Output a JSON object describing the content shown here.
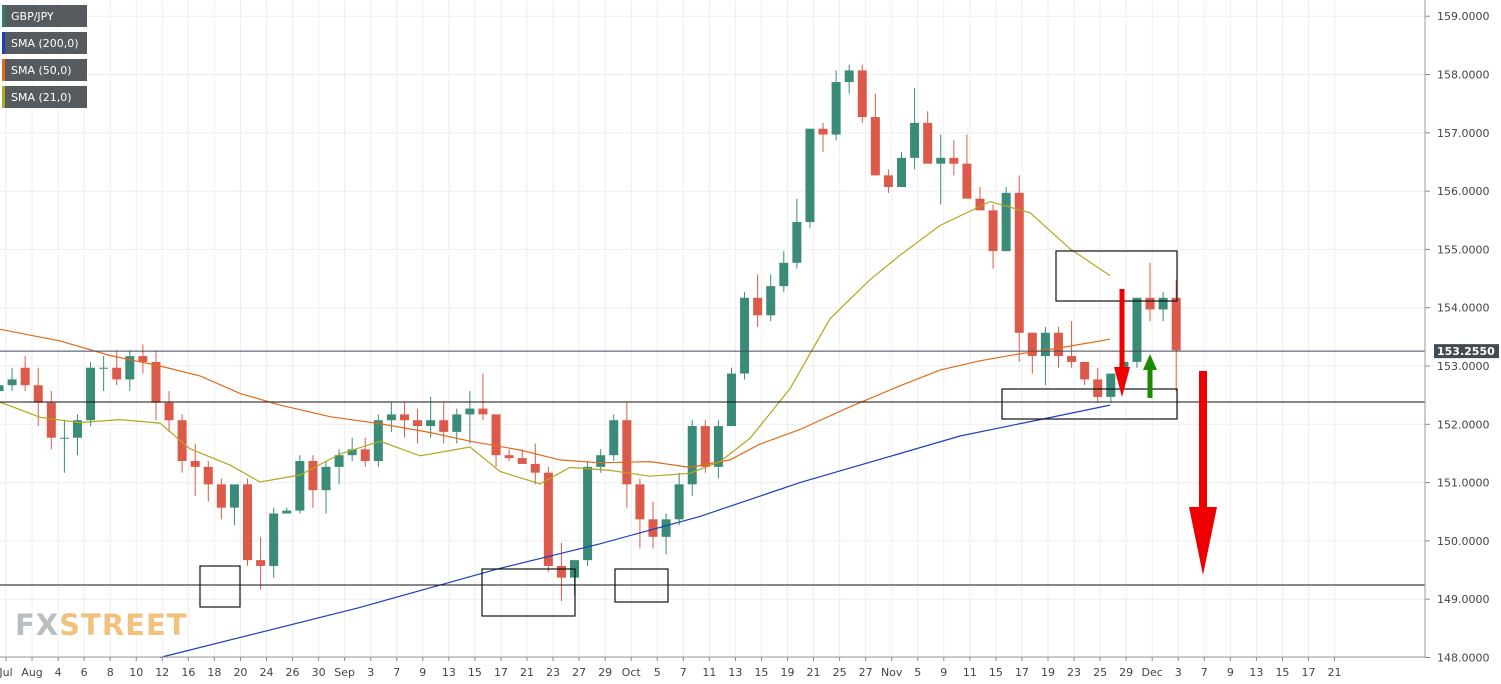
{
  "legend": [
    {
      "label": "GBP/JPY",
      "color": "#2d8070"
    },
    {
      "label": "SMA (200,0)",
      "color": "#1d3fbf"
    },
    {
      "label": "SMA (50,0)",
      "color": "#e06a1c"
    },
    {
      "label": "SMA (21,0)",
      "color": "#b3a71c"
    }
  ],
  "logo": {
    "fx": "FX",
    "street": "STREET"
  },
  "colors": {
    "up": "#3a8b78",
    "down": "#dc5a4a",
    "sma200": "#1d3fbf",
    "sma50": "#e06a1c",
    "sma21": "#b3a71c",
    "arrow_down": "#ee0000",
    "arrow_up": "#1a8a00",
    "price_label_bg": "#434a50"
  },
  "chart_data": {
    "type": "candlestick",
    "symbol": "GBP/JPY",
    "current_price": "153.2550",
    "current_price_value": 153.255,
    "ylim": [
      148.0,
      159.0
    ],
    "y_ticks": [
      "148.0000",
      "149.0000",
      "150.0000",
      "151.0000",
      "152.0000",
      "153.0000",
      "154.0000",
      "155.0000",
      "156.0000",
      "157.0000",
      "158.0000",
      "159.0000"
    ],
    "x_tick_labels": [
      "Jul",
      "Aug",
      "4",
      "6",
      "8",
      "10",
      "12",
      "16",
      "18",
      "20",
      "24",
      "26",
      "30",
      "Sep",
      "3",
      "7",
      "9",
      "13",
      "15",
      "17",
      "21",
      "23",
      "27",
      "29",
      "Oct",
      "5",
      "7",
      "11",
      "13",
      "15",
      "19",
      "21",
      "25",
      "27",
      "Nov",
      "5",
      "9",
      "11",
      "15",
      "17",
      "19",
      "23",
      "25",
      "29",
      "Dec",
      "3",
      "7",
      "9",
      "13",
      "15",
      "17",
      "21"
    ],
    "candles": [
      [
        152.57,
        152.97,
        152.37,
        152.67
      ],
      [
        152.67,
        152.97,
        152.57,
        152.77
      ],
      [
        152.97,
        153.17,
        152.57,
        152.67
      ],
      [
        152.67,
        152.97,
        151.97,
        152.37
      ],
      [
        152.37,
        152.57,
        151.57,
        151.77
      ],
      [
        151.77,
        152.07,
        151.17,
        151.77
      ],
      [
        151.77,
        152.17,
        151.47,
        152.07
      ],
      [
        152.07,
        153.07,
        151.97,
        152.97
      ],
      [
        152.97,
        153.17,
        152.57,
        152.97
      ],
      [
        152.97,
        153.27,
        152.67,
        152.77
      ],
      [
        152.77,
        153.27,
        152.57,
        153.17
      ],
      [
        153.17,
        153.37,
        152.87,
        153.07
      ],
      [
        153.07,
        153.27,
        152.07,
        152.37
      ],
      [
        152.37,
        152.57,
        151.87,
        152.07
      ],
      [
        152.07,
        152.17,
        151.17,
        151.37
      ],
      [
        151.37,
        151.67,
        150.77,
        151.27
      ],
      [
        151.27,
        151.37,
        150.67,
        150.97
      ],
      [
        150.97,
        151.07,
        150.37,
        150.57
      ],
      [
        150.57,
        150.97,
        150.27,
        150.97
      ],
      [
        150.97,
        151.07,
        149.57,
        149.67
      ],
      [
        149.67,
        150.07,
        149.17,
        149.57
      ],
      [
        149.57,
        150.57,
        149.37,
        150.47
      ],
      [
        150.47,
        150.57,
        150.47,
        150.52
      ],
      [
        150.52,
        151.47,
        150.47,
        151.37
      ],
      [
        151.37,
        151.47,
        150.57,
        150.87
      ],
      [
        150.87,
        151.37,
        150.47,
        151.27
      ],
      [
        151.27,
        151.57,
        150.97,
        151.47
      ],
      [
        151.47,
        151.77,
        151.37,
        151.57
      ],
      [
        151.57,
        151.77,
        151.27,
        151.37
      ],
      [
        151.37,
        152.17,
        151.27,
        152.07
      ],
      [
        152.07,
        152.37,
        151.87,
        152.17
      ],
      [
        152.17,
        152.37,
        151.77,
        152.07
      ],
      [
        152.07,
        152.27,
        151.67,
        151.97
      ],
      [
        151.97,
        152.47,
        151.77,
        152.07
      ],
      [
        152.07,
        152.37,
        151.67,
        151.87
      ],
      [
        151.87,
        152.27,
        151.67,
        152.17
      ],
      [
        152.17,
        152.57,
        151.67,
        152.27
      ],
      [
        152.27,
        152.87,
        152.07,
        152.17
      ],
      [
        152.17,
        152.17,
        151.27,
        151.47
      ],
      [
        151.47,
        151.57,
        151.37,
        151.42
      ],
      [
        151.42,
        151.57,
        151.37,
        151.32
      ],
      [
        151.32,
        151.67,
        150.97,
        151.17
      ],
      [
        151.17,
        151.27,
        149.47,
        149.57
      ],
      [
        149.57,
        149.97,
        148.97,
        149.37
      ],
      [
        149.37,
        149.67,
        149.07,
        149.67
      ],
      [
        149.67,
        151.37,
        149.57,
        151.27
      ],
      [
        151.27,
        151.57,
        151.17,
        151.47
      ],
      [
        151.47,
        152.17,
        151.37,
        152.07
      ],
      [
        152.07,
        152.37,
        150.57,
        150.97
      ],
      [
        150.97,
        151.07,
        149.87,
        150.37
      ],
      [
        150.37,
        150.67,
        149.87,
        150.07
      ],
      [
        150.07,
        150.47,
        149.77,
        150.37
      ],
      [
        150.37,
        151.17,
        150.27,
        150.97
      ],
      [
        150.97,
        152.07,
        150.77,
        151.97
      ],
      [
        151.97,
        152.07,
        151.17,
        151.27
      ],
      [
        151.27,
        152.07,
        151.07,
        151.97
      ],
      [
        151.97,
        152.97,
        151.97,
        152.87
      ],
      [
        152.87,
        154.27,
        152.77,
        154.17
      ],
      [
        154.17,
        154.57,
        153.67,
        153.87
      ],
      [
        153.87,
        154.57,
        153.77,
        154.37
      ],
      [
        154.37,
        154.97,
        154.27,
        154.77
      ],
      [
        154.77,
        155.87,
        154.67,
        155.47
      ],
      [
        155.47,
        157.07,
        155.37,
        157.07
      ],
      [
        157.07,
        157.17,
        156.67,
        156.97
      ],
      [
        156.97,
        158.07,
        156.87,
        157.87
      ],
      [
        157.87,
        158.17,
        157.67,
        158.07
      ],
      [
        158.07,
        158.17,
        157.17,
        157.27
      ],
      [
        157.27,
        157.67,
        156.27,
        156.27
      ],
      [
        156.27,
        156.37,
        155.97,
        156.07
      ],
      [
        156.07,
        156.67,
        156.07,
        156.57
      ],
      [
        156.57,
        157.77,
        156.37,
        157.17
      ],
      [
        157.17,
        157.37,
        156.57,
        156.47
      ],
      [
        156.47,
        156.97,
        155.77,
        156.57
      ],
      [
        156.57,
        156.87,
        156.27,
        156.47
      ],
      [
        156.47,
        156.97,
        155.87,
        155.87
      ],
      [
        155.87,
        156.07,
        155.67,
        155.67
      ],
      [
        155.67,
        155.77,
        154.67,
        154.97
      ],
      [
        154.97,
        156.07,
        154.97,
        155.97
      ],
      [
        155.97,
        156.27,
        153.07,
        153.57
      ],
      [
        153.57,
        153.57,
        152.87,
        153.17
      ],
      [
        153.17,
        153.67,
        152.67,
        153.57
      ],
      [
        153.57,
        153.67,
        152.97,
        153.17
      ],
      [
        153.17,
        153.77,
        152.97,
        153.07
      ],
      [
        153.07,
        153.07,
        152.67,
        152.77
      ],
      [
        152.77,
        152.97,
        152.37,
        152.47
      ],
      [
        152.47,
        152.87,
        152.37,
        152.87
      ],
      [
        152.87,
        153.17,
        152.77,
        153.07
      ],
      [
        153.07,
        154.17,
        152.97,
        154.17
      ],
      [
        154.17,
        154.77,
        153.77,
        153.97
      ],
      [
        153.97,
        154.27,
        153.77,
        154.17
      ],
      [
        154.17,
        154.47,
        152.57,
        153.27
      ]
    ],
    "sma200": [
      [
        160,
        148.0
      ],
      [
        360,
        148.86
      ],
      [
        500,
        149.53
      ],
      [
        600,
        149.95
      ],
      [
        700,
        150.42
      ],
      [
        800,
        151.0
      ],
      [
        900,
        151.5
      ],
      [
        960,
        151.8
      ],
      [
        1040,
        152.08
      ],
      [
        1110,
        152.33
      ]
    ],
    "sma50": [
      [
        0,
        153.63
      ],
      [
        60,
        153.43
      ],
      [
        110,
        153.18
      ],
      [
        160,
        153.0
      ],
      [
        200,
        152.83
      ],
      [
        240,
        152.53
      ],
      [
        280,
        152.33
      ],
      [
        330,
        152.13
      ],
      [
        380,
        152.01
      ],
      [
        430,
        151.86
      ],
      [
        470,
        151.71
      ],
      [
        520,
        151.56
      ],
      [
        560,
        151.39
      ],
      [
        600,
        151.34
      ],
      [
        650,
        151.36
      ],
      [
        690,
        151.26
      ],
      [
        730,
        151.39
      ],
      [
        760,
        151.66
      ],
      [
        800,
        151.91
      ],
      [
        850,
        152.3
      ],
      [
        900,
        152.66
      ],
      [
        940,
        152.93
      ],
      [
        980,
        153.09
      ],
      [
        1020,
        153.21
      ],
      [
        1060,
        153.31
      ],
      [
        1110,
        153.46
      ]
    ],
    "sma21": [
      [
        0,
        152.38
      ],
      [
        40,
        152.12
      ],
      [
        80,
        152.03
      ],
      [
        120,
        152.08
      ],
      [
        160,
        152.02
      ],
      [
        190,
        151.58
      ],
      [
        230,
        151.3
      ],
      [
        260,
        151.01
      ],
      [
        300,
        151.13
      ],
      [
        340,
        151.49
      ],
      [
        380,
        151.71
      ],
      [
        420,
        151.46
      ],
      [
        470,
        151.61
      ],
      [
        500,
        151.19
      ],
      [
        540,
        150.98
      ],
      [
        570,
        151.26
      ],
      [
        610,
        151.21
      ],
      [
        650,
        151.11
      ],
      [
        690,
        151.16
      ],
      [
        720,
        151.36
      ],
      [
        750,
        151.76
      ],
      [
        790,
        152.61
      ],
      [
        830,
        153.81
      ],
      [
        870,
        154.48
      ],
      [
        900,
        154.9
      ],
      [
        940,
        155.41
      ],
      [
        990,
        155.82
      ],
      [
        1030,
        155.63
      ],
      [
        1070,
        155.01
      ],
      [
        1110,
        154.55
      ]
    ],
    "boxes": [
      [
        200,
        240,
        566,
        607
      ],
      [
        482,
        575,
        569,
        616
      ],
      [
        615,
        668,
        569,
        602
      ],
      [
        1002,
        1177,
        389,
        419
      ],
      [
        1056,
        1177,
        251,
        301
      ]
    ],
    "hlines": [
      {
        "y": 402,
        "x1": 0,
        "x2": 1425
      },
      {
        "y": 585,
        "x1": 0,
        "x2": 1425
      }
    ],
    "arrows": [
      {
        "type": "down",
        "x": 1122,
        "y_top": 289,
        "y_tip": 397,
        "color": "arrow_down"
      },
      {
        "type": "up",
        "x": 1150,
        "y_top": 354,
        "y_bottom": 398,
        "color": "arrow_up"
      },
      {
        "type": "down",
        "x": 1203,
        "y_top": 371,
        "y_tip": 575,
        "color": "arrow_down"
      }
    ]
  }
}
